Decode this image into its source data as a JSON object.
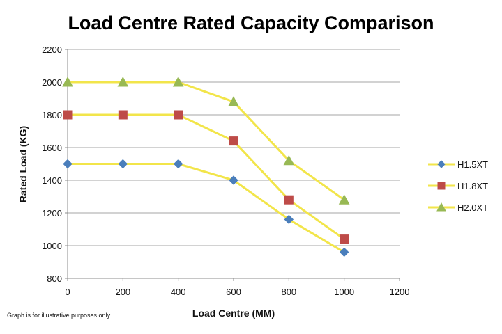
{
  "chart_data": {
    "type": "line",
    "title": "Load Centre Rated Capacity Comparison",
    "xlabel": "Load Centre (MM)",
    "ylabel": "Rated Load (KG)",
    "xlim": [
      0,
      1200
    ],
    "ylim": [
      800,
      2200
    ],
    "x_ticks": [
      0,
      200,
      400,
      600,
      800,
      1000,
      1200
    ],
    "y_ticks": [
      800,
      1000,
      1200,
      1400,
      1600,
      1800,
      2000,
      2200
    ],
    "grid": "horizontal",
    "legend_position": "right",
    "line_color": "#F2E54A",
    "series": [
      {
        "name": "H1.5XT",
        "marker": "diamond",
        "color": "#4A7EBB",
        "x": [
          0,
          200,
          400,
          600,
          800,
          1000
        ],
        "values": [
          1500,
          1500,
          1500,
          1400,
          1160,
          960
        ]
      },
      {
        "name": "H1.8XT",
        "marker": "square",
        "color": "#BE4B48",
        "x": [
          0,
          200,
          400,
          600,
          800,
          1000
        ],
        "values": [
          1800,
          1800,
          1800,
          1640,
          1280,
          1040
        ]
      },
      {
        "name": "H2.0XT",
        "marker": "triangle",
        "color": "#98B954",
        "x": [
          0,
          200,
          400,
          600,
          800,
          1000
        ],
        "values": [
          2000,
          2000,
          2000,
          1880,
          1520,
          1280
        ]
      }
    ],
    "footnote": "Graph is for illustrative purposes only"
  }
}
